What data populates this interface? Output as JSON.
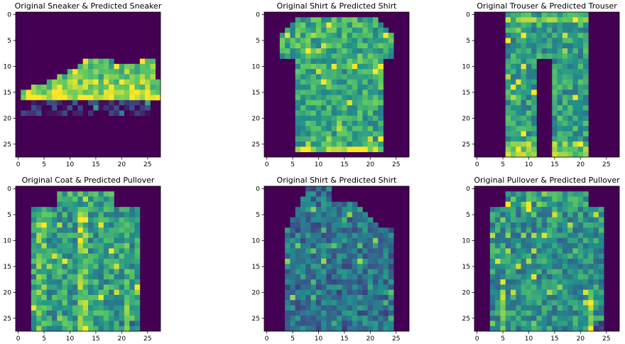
{
  "chart_data": [
    {
      "type": "heatmap",
      "title": "Original Sneaker & Predicted Sneaker",
      "original": "Sneaker",
      "predicted": "Sneaker",
      "colormap": "viridis",
      "image_size": [
        28,
        28
      ],
      "xlim": [
        -0.5,
        27.5
      ],
      "ylim": [
        27.5,
        -0.5
      ],
      "xticks": [
        0,
        5,
        10,
        15,
        20,
        25
      ],
      "yticks": [
        0,
        5,
        10,
        15,
        20,
        25
      ],
      "silhouette": "sneaker"
    },
    {
      "type": "heatmap",
      "title": "Original Shirt & Predicted Shirt",
      "original": "Shirt",
      "predicted": "Shirt",
      "colormap": "viridis",
      "image_size": [
        28,
        28
      ],
      "xlim": [
        -0.5,
        27.5
      ],
      "ylim": [
        27.5,
        -0.5
      ],
      "xticks": [
        0,
        5,
        10,
        15,
        20,
        25
      ],
      "yticks": [
        0,
        5,
        10,
        15,
        20,
        25
      ],
      "silhouette": "tshirt"
    },
    {
      "type": "heatmap",
      "title": "Original Trouser & Predicted Trouser",
      "original": "Trouser",
      "predicted": "Trouser",
      "colormap": "viridis",
      "image_size": [
        28,
        28
      ],
      "xlim": [
        -0.5,
        27.5
      ],
      "ylim": [
        27.5,
        -0.5
      ],
      "xticks": [
        0,
        5,
        10,
        15,
        20,
        25
      ],
      "yticks": [
        0,
        5,
        10,
        15,
        20,
        25
      ],
      "silhouette": "trouser"
    },
    {
      "type": "heatmap",
      "title": "Original Coat & Predicted Pullover",
      "original": "Coat",
      "predicted": "Pullover",
      "colormap": "viridis",
      "image_size": [
        28,
        28
      ],
      "xlim": [
        -0.5,
        27.5
      ],
      "ylim": [
        27.5,
        -0.5
      ],
      "xticks": [
        0,
        5,
        10,
        15,
        20,
        25
      ],
      "yticks": [
        0,
        5,
        10,
        15,
        20,
        25
      ],
      "silhouette": "coat"
    },
    {
      "type": "heatmap",
      "title": "Original Shirt & Predicted Shirt",
      "original": "Shirt",
      "predicted": "Shirt",
      "colormap": "viridis",
      "image_size": [
        28,
        28
      ],
      "xlim": [
        -0.5,
        27.5
      ],
      "ylim": [
        27.5,
        -0.5
      ],
      "xticks": [
        0,
        5,
        10,
        15,
        20,
        25
      ],
      "yticks": [
        0,
        5,
        10,
        15,
        20,
        25
      ],
      "silhouette": "shirt-angled"
    },
    {
      "type": "heatmap",
      "title": "Original Pullover & Predicted Pullover",
      "original": "Pullover",
      "predicted": "Pullover",
      "colormap": "viridis",
      "image_size": [
        28,
        28
      ],
      "xlim": [
        -0.5,
        27.5
      ],
      "ylim": [
        27.5,
        -0.5
      ],
      "xticks": [
        0,
        5,
        10,
        15,
        20,
        25
      ],
      "yticks": [
        0,
        5,
        10,
        15,
        20,
        25
      ],
      "silhouette": "pullover"
    }
  ],
  "colors": {
    "background": "#440154",
    "viridis_stops": [
      "#440154",
      "#3b528b",
      "#21918c",
      "#5ec962",
      "#fde725"
    ]
  }
}
